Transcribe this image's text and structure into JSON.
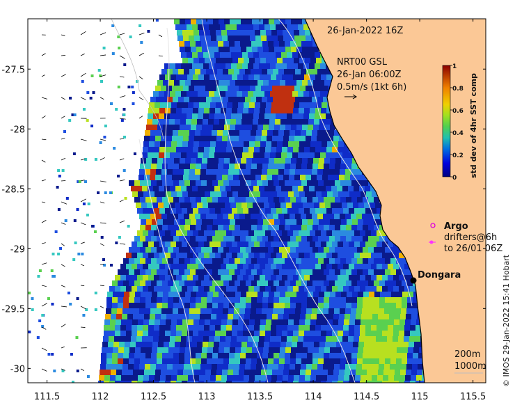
{
  "map": {
    "date_label": "26-Jan-2022 16Z",
    "current_product": "NRT00 GSL",
    "current_time": "26-Jan 06:00Z",
    "current_scale": "0.5m/s (1kt 6h)",
    "colorbar": {
      "title": "std dev of 4hr SST comp",
      "ticks": [
        "1",
        "0.8",
        "0.6",
        "0.4",
        "0.2",
        "0"
      ],
      "tick_values": [
        1,
        0.8,
        0.6,
        0.4,
        0.2,
        0
      ]
    },
    "legend": {
      "argo_label": "Argo",
      "drifters_label": "drifters@6h",
      "drifters_time": "to 26/01 06Z",
      "argo_color": "#dd00dd",
      "drifter_color": "#ff33ff"
    },
    "place": {
      "name": "Dongara"
    },
    "contours": {
      "label_200": "200m",
      "label_1000": "1000m"
    },
    "credit": "© IMOS 29-Jan-2022 15:41 Hobart",
    "x_axis_ticks": [
      "111.5",
      "112",
      "112.5",
      "113",
      "113.5",
      "114",
      "114.5",
      "115",
      "115.5"
    ],
    "x_axis_values": [
      111.5,
      112,
      112.5,
      113,
      113.5,
      114,
      114.5,
      115,
      115.5
    ],
    "y_axis_ticks": [
      "-27.5",
      "-28",
      "-28.5",
      "-29",
      "-29.5",
      "-30"
    ],
    "y_axis_values": [
      -27.5,
      -28,
      -28.5,
      -29,
      -29.5,
      -30
    ],
    "lon_range": [
      111.32,
      115.62
    ],
    "lat_range": [
      -30.12,
      -27.08
    ],
    "colors": {
      "land": "#fbc896",
      "ocean_low": "#0a1a8c",
      "coast_line": "#000000"
    }
  }
}
